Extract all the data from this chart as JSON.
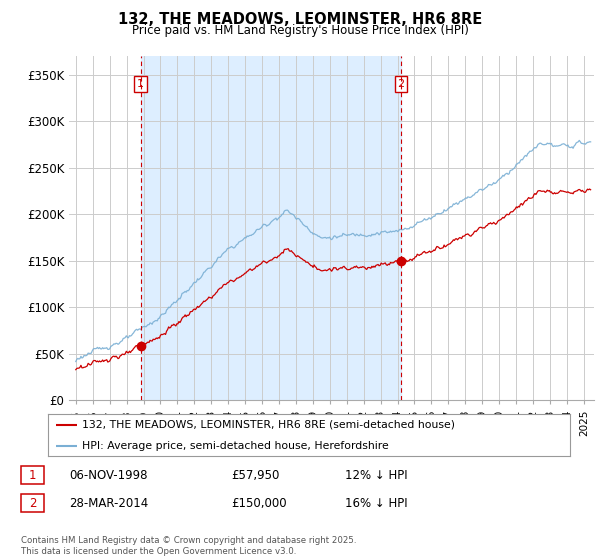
{
  "title": "132, THE MEADOWS, LEOMINSTER, HR6 8RE",
  "subtitle": "Price paid vs. HM Land Registry's House Price Index (HPI)",
  "legend_line1": "132, THE MEADOWS, LEOMINSTER, HR6 8RE (semi-detached house)",
  "legend_line2": "HPI: Average price, semi-detached house, Herefordshire",
  "footer": "Contains HM Land Registry data © Crown copyright and database right 2025.\nThis data is licensed under the Open Government Licence v3.0.",
  "sale1_date": "06-NOV-1998",
  "sale1_price": 57950,
  "sale1_label": "1",
  "sale1_note": "12% ↓ HPI",
  "sale2_date": "28-MAR-2014",
  "sale2_price": 150000,
  "sale2_label": "2",
  "sale2_note": "16% ↓ HPI",
  "red_color": "#cc0000",
  "blue_color": "#7aafd4",
  "shade_color": "#ddeeff",
  "dashed_color": "#cc0000",
  "background_color": "#ffffff",
  "grid_color": "#cccccc",
  "ylim": [
    0,
    370000
  ],
  "yticks": [
    0,
    50000,
    100000,
    150000,
    200000,
    250000,
    300000,
    350000
  ],
  "ytick_labels": [
    "£0",
    "£50K",
    "£100K",
    "£150K",
    "£200K",
    "£250K",
    "£300K",
    "£350K"
  ],
  "xmin": 1995,
  "xmax": 2025,
  "sale1_year": 1998.83,
  "sale2_year": 2014.21
}
